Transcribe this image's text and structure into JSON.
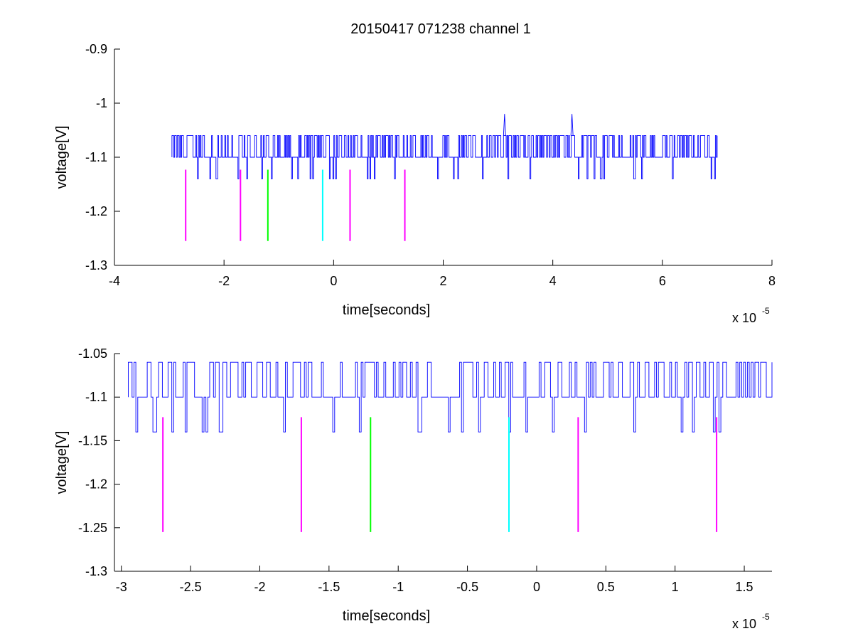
{
  "figure": {
    "title": "20150417 071238 channel 1"
  },
  "chart_data": [
    {
      "type": "line",
      "title": "20150417 071238 channel 1",
      "xlabel": "time[seconds]",
      "ylabel": "voltage[V]",
      "x_exponent_base": "x 10",
      "x_exponent_power": "-5",
      "xlim": [
        -4,
        8
      ],
      "ylim": [
        -1.3,
        -0.9
      ],
      "xticks": [
        -4,
        -2,
        0,
        2,
        4,
        6,
        8
      ],
      "xtick_labels": [
        "-4",
        "-2",
        "0",
        "2",
        "4",
        "6",
        "8"
      ],
      "yticks": [
        -1.3,
        -1.2,
        -1.1,
        -1,
        -0.9
      ],
      "ytick_labels": [
        "-1.3",
        "-1.2",
        "-1.1",
        "-1",
        "-0.9"
      ],
      "grid": false,
      "signal": {
        "color": "#0000ff",
        "t_start": -2.95,
        "t_end": 7.0,
        "baseline": -1.1,
        "levels": [
          -1.14,
          -1.1,
          -1.06
        ],
        "spikes": [
          {
            "t": 3.12,
            "v": -1.02
          },
          {
            "t": 4.35,
            "v": -1.02
          }
        ]
      },
      "markers": [
        {
          "t": -2.7,
          "color": "#ff00ff",
          "y_top": -1.123,
          "y_bottom": -1.255
        },
        {
          "t": -1.7,
          "color": "#ff00ff",
          "y_top": -1.123,
          "y_bottom": -1.255
        },
        {
          "t": -1.2,
          "color": "#00ff00",
          "y_top": -1.123,
          "y_bottom": -1.255
        },
        {
          "t": -0.2,
          "color": "#00ffff",
          "y_top": -1.123,
          "y_bottom": -1.255
        },
        {
          "t": 0.3,
          "color": "#ff00ff",
          "y_top": -1.123,
          "y_bottom": -1.255
        },
        {
          "t": 1.3,
          "color": "#ff00ff",
          "y_top": -1.123,
          "y_bottom": -1.255
        }
      ]
    },
    {
      "type": "line",
      "xlabel": "time[seconds]",
      "ylabel": "voltage[V]",
      "x_exponent_base": "x 10",
      "x_exponent_power": "-5",
      "xlim": [
        -3.05,
        1.7
      ],
      "ylim": [
        -1.3,
        -1.05
      ],
      "xticks": [
        -3,
        -2.5,
        -2,
        -1.5,
        -1,
        -0.5,
        0,
        0.5,
        1,
        1.5
      ],
      "xtick_labels": [
        "-3",
        "-2.5",
        "-2",
        "-1.5",
        "-1",
        "-0.5",
        "0",
        "0.5",
        "1",
        "1.5"
      ],
      "yticks": [
        -1.3,
        -1.25,
        -1.2,
        -1.15,
        -1.1,
        -1.05
      ],
      "ytick_labels": [
        "-1.3",
        "-1.25",
        "-1.2",
        "-1.15",
        "-1.1",
        "-1.05"
      ],
      "grid": false,
      "signal": {
        "color": "#0000ff",
        "t_start": -2.95,
        "t_end": 1.7,
        "baseline": -1.1,
        "levels": [
          -1.14,
          -1.1,
          -1.06
        ],
        "spikes": []
      },
      "markers": [
        {
          "t": -2.7,
          "color": "#ff00ff",
          "y_top": -1.123,
          "y_bottom": -1.255
        },
        {
          "t": -1.7,
          "color": "#ff00ff",
          "y_top": -1.123,
          "y_bottom": -1.255
        },
        {
          "t": -1.2,
          "color": "#00ff00",
          "y_top": -1.123,
          "y_bottom": -1.255
        },
        {
          "t": -0.2,
          "color": "#00ffff",
          "y_top": -1.123,
          "y_bottom": -1.255
        },
        {
          "t": 0.3,
          "color": "#ff00ff",
          "y_top": -1.123,
          "y_bottom": -1.255
        },
        {
          "t": 1.3,
          "color": "#ff00ff",
          "y_top": -1.123,
          "y_bottom": -1.255
        }
      ]
    }
  ]
}
